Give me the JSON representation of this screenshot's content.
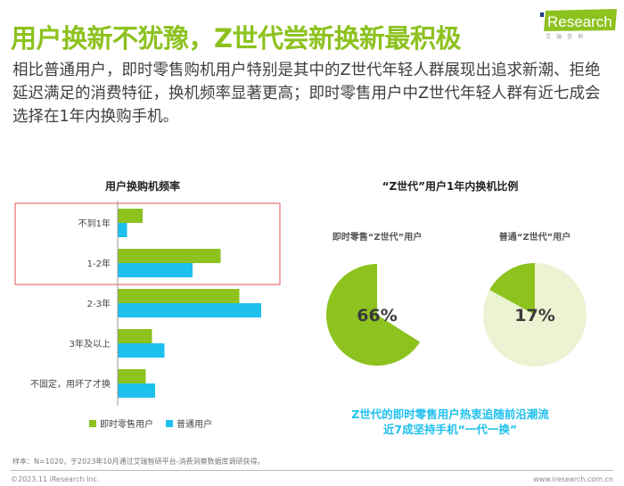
{
  "header": {
    "title": "用户换新不犹豫，Z世代尝新换新最积极",
    "body": "相比普通用户，即时零售购机用户特别是其中的Z世代年轻人群展现出追求新潮、拒绝延迟满足的消费特征，换机频率显著更高；即时零售用户中Z世代年轻人群有近七成会选择在1年内换购手机。",
    "logo_text": "iResearch",
    "logo_sub": "艾 瑞 咨 询"
  },
  "colors": {
    "accent": "#8dc21f",
    "blue": "#1ec0ee",
    "light_green": "#ebf3d2",
    "highlight_box": "#e05050"
  },
  "chart_data": [
    {
      "type": "bar",
      "orientation": "horizontal",
      "title": "用户换购机频率",
      "categories": [
        "不到1年",
        "1-2年",
        "2-3年",
        "3年及以上",
        "不固定，用坏了才换"
      ],
      "series": [
        {
          "name": "即时零售用户",
          "color": "#8dc21f",
          "values": [
            8,
            33,
            39,
            11,
            9
          ]
        },
        {
          "name": "普通用户",
          "color": "#1ec0ee",
          "values": [
            3,
            24,
            46,
            15,
            12
          ]
        }
      ],
      "legend": "bottom",
      "grid": false,
      "highlighted_categories": [
        "不到1年",
        "1-2年"
      ]
    },
    {
      "type": "pie",
      "title": "“Z世代”用户1年内换机比例",
      "pies": [
        {
          "label": "即时零售“Z世代”用户",
          "value": 66,
          "value_label": "66%"
        },
        {
          "label": "普通“Z世代”用户",
          "value": 17,
          "value_label": "17%"
        }
      ]
    }
  ],
  "callout": [
    "Z世代的即时零售用户热衷追随前沿潮流",
    "近7成坚持手机“一代一换”"
  ],
  "footer": {
    "note": "样本：N=1020，于2023年10月通过艾瑞智研平台-消费洞察数据库调研获得。",
    "copyright": "©2023.11 iResearch Inc.",
    "site": "www.iresearch.com.cn"
  }
}
